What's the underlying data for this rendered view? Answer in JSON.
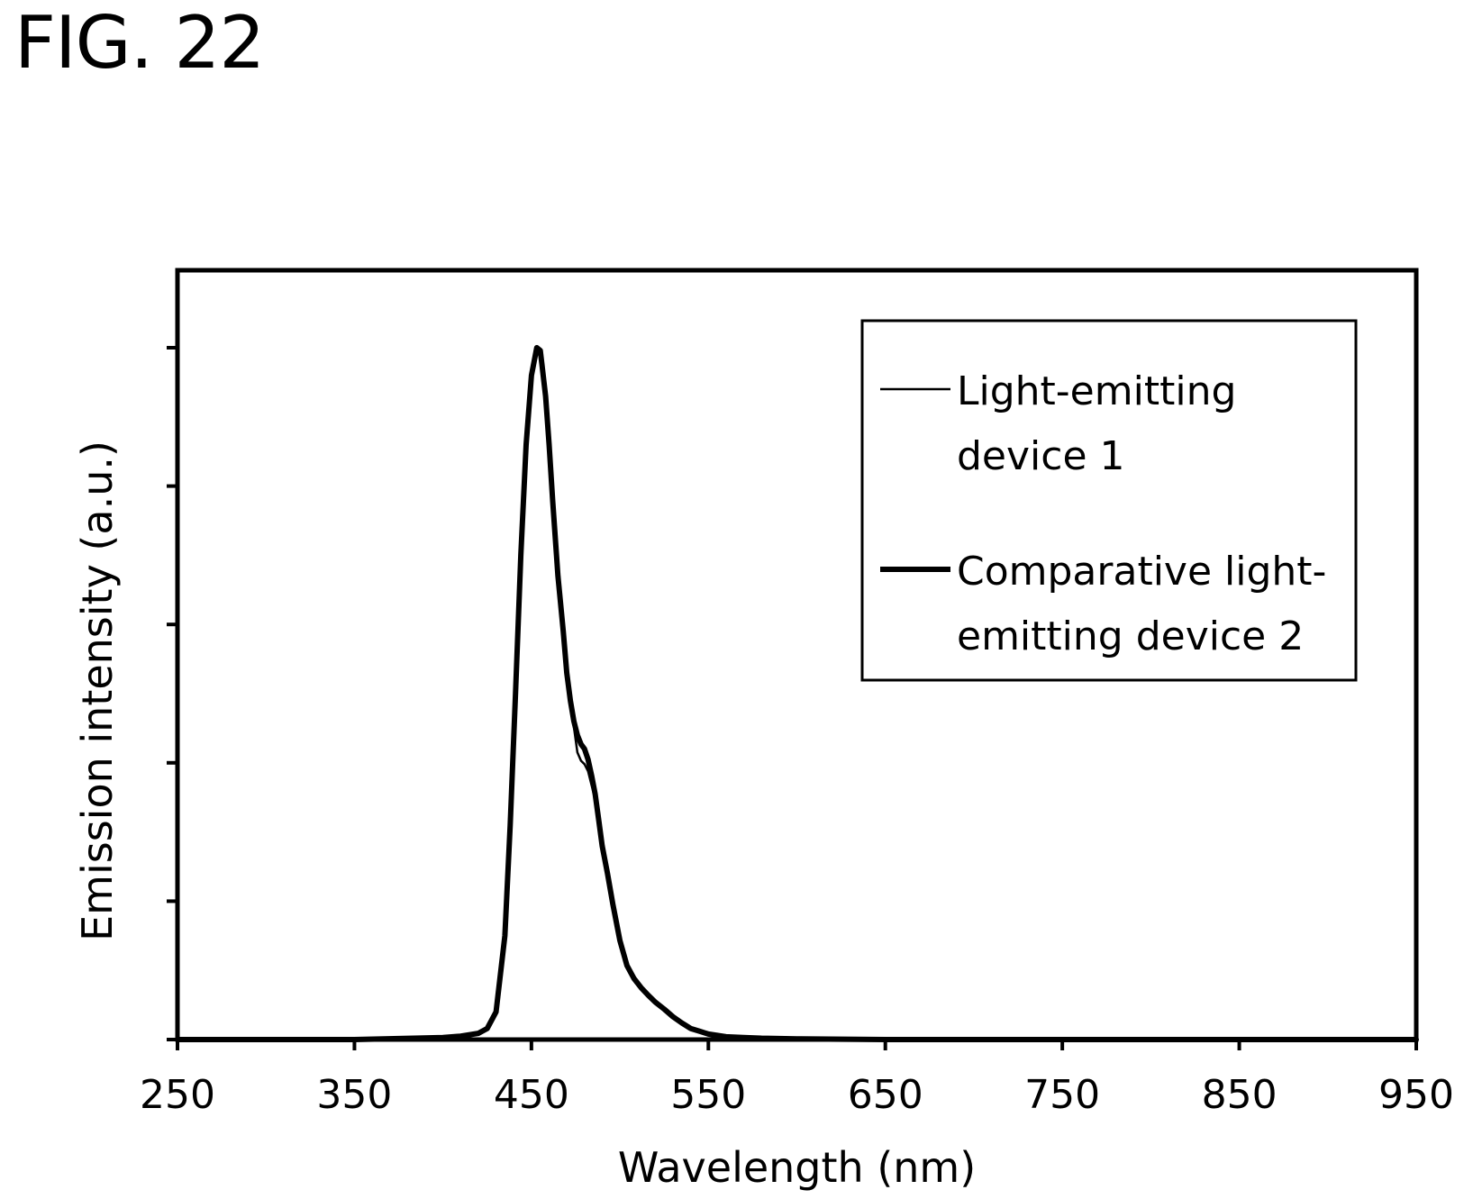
{
  "figure_label": "FIG. 22",
  "chart_data": {
    "type": "line",
    "title": "",
    "xlabel": "Wavelength (nm)",
    "ylabel": "Emission intensity (a.u.)",
    "xlim": [
      250,
      950
    ],
    "ylim": [
      0,
      1
    ],
    "xticks": [
      250,
      350,
      450,
      550,
      650,
      750,
      850,
      950
    ],
    "xtick_labels": [
      "250",
      "350",
      "450",
      "550",
      "650",
      "750",
      "850",
      "950"
    ],
    "yticks": [
      0,
      0.2,
      0.4,
      0.6,
      0.8,
      1.0
    ],
    "ytick_labels_shown": false,
    "grid": false,
    "legend_position": "top-right",
    "series": [
      {
        "name": "Light-emitting device 1",
        "line_style": "thin",
        "color": "#000000",
        "x": [
          250,
          300,
          350,
          400,
          410,
          420,
          425,
          430,
          435,
          438,
          441,
          444,
          447,
          450,
          453,
          455,
          456,
          458,
          460,
          462,
          465,
          468,
          470,
          472,
          474,
          476,
          478,
          480,
          482,
          484,
          486,
          488,
          490,
          493,
          496,
          500,
          504,
          508,
          512,
          516,
          520,
          525,
          530,
          535,
          540,
          545,
          550,
          555,
          560,
          570,
          580,
          600,
          650,
          700,
          800,
          950
        ],
        "y": [
          0,
          0,
          0,
          0.003,
          0.005,
          0.009,
          0.016,
          0.04,
          0.15,
          0.31,
          0.5,
          0.7,
          0.86,
          0.96,
          1.0,
          0.996,
          0.975,
          0.93,
          0.86,
          0.78,
          0.67,
          0.59,
          0.53,
          0.485,
          0.452,
          0.415,
          0.403,
          0.398,
          0.388,
          0.368,
          0.348,
          0.315,
          0.28,
          0.24,
          0.196,
          0.143,
          0.107,
          0.088,
          0.075,
          0.064,
          0.054,
          0.044,
          0.033,
          0.024,
          0.016,
          0.012,
          0.008,
          0.006,
          0.004,
          0.003,
          0.002,
          0.001,
          0,
          0,
          0,
          0
        ]
      },
      {
        "name": "Comparative light-emitting device 2",
        "line_style": "thick",
        "color": "#000000",
        "x": [
          250,
          300,
          350,
          400,
          410,
          420,
          425,
          430,
          435,
          438,
          441,
          444,
          447,
          450,
          453,
          455,
          456,
          458,
          460,
          462,
          465,
          468,
          470,
          472,
          474,
          476,
          478,
          480,
          482,
          484,
          486,
          488,
          490,
          493,
          496,
          500,
          504,
          508,
          512,
          516,
          520,
          525,
          530,
          535,
          540,
          545,
          550,
          555,
          560,
          570,
          580,
          600,
          650,
          700,
          800,
          950
        ],
        "y": [
          0,
          0,
          0,
          0.003,
          0.005,
          0.009,
          0.016,
          0.04,
          0.15,
          0.31,
          0.5,
          0.7,
          0.86,
          0.96,
          1.0,
          0.996,
          0.975,
          0.93,
          0.86,
          0.78,
          0.67,
          0.59,
          0.53,
          0.49,
          0.46,
          0.44,
          0.427,
          0.42,
          0.405,
          0.382,
          0.355,
          0.318,
          0.28,
          0.24,
          0.196,
          0.143,
          0.107,
          0.088,
          0.075,
          0.064,
          0.054,
          0.044,
          0.033,
          0.024,
          0.016,
          0.012,
          0.008,
          0.006,
          0.004,
          0.003,
          0.002,
          0.001,
          0,
          0,
          0,
          0
        ]
      }
    ],
    "legend": {
      "entries": [
        {
          "line_style": "thin",
          "lines": [
            "Light-emitting",
            "device 1"
          ]
        },
        {
          "line_style": "thick",
          "lines": [
            "Comparative light-",
            "emitting device 2"
          ]
        }
      ]
    }
  }
}
